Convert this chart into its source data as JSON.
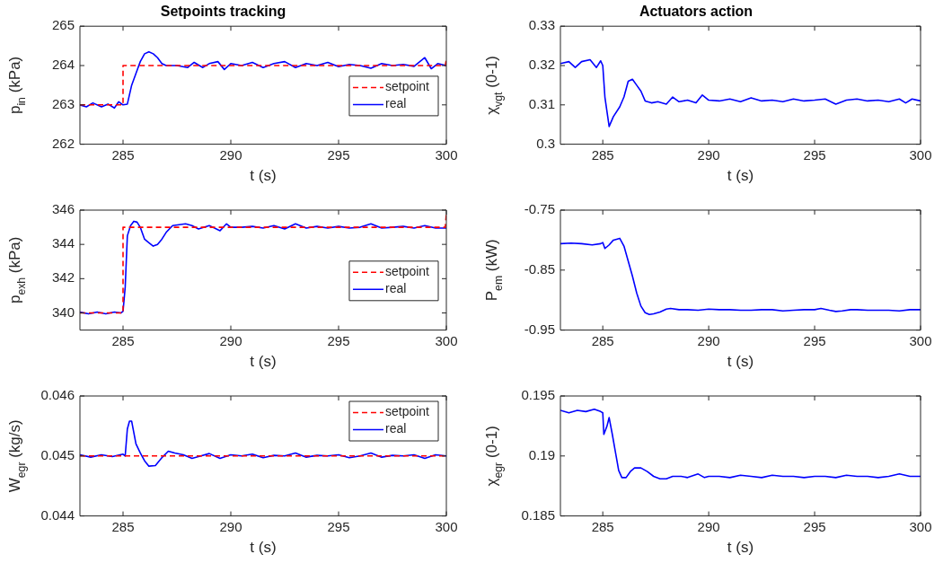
{
  "chart_data": [
    {
      "type": "line",
      "title": "Setpoints tracking",
      "xlabel": "t (s)",
      "ylabel": "p$_{in}$ (kPa)",
      "xlim": [
        283,
        300
      ],
      "xticks": [
        285,
        290,
        295,
        300
      ],
      "ylim": [
        262,
        265
      ],
      "yticks": [
        262,
        263,
        264,
        265
      ],
      "grid": false,
      "legend": "right",
      "series": [
        {
          "name": "setpoint",
          "color": "#ff0000",
          "line_style": "dashed",
          "x": [
            283,
            285,
            285,
            299.95,
            300
          ],
          "values": [
            263,
            263,
            264,
            264,
            264.15
          ]
        },
        {
          "name": "real",
          "color": "#0000ff",
          "line_style": "solid",
          "x": [
            283,
            283.3,
            283.6,
            284,
            284.3,
            284.6,
            284.8,
            285,
            285.2,
            285.4,
            285.6,
            285.8,
            286,
            286.2,
            286.4,
            286.6,
            286.8,
            287,
            287.5,
            288,
            288.3,
            288.7,
            289,
            289.4,
            289.7,
            290,
            290.5,
            291,
            291.5,
            292,
            292.5,
            293,
            293.5,
            294,
            294.5,
            295,
            295.5,
            296,
            296.5,
            297,
            297.5,
            298,
            298.5,
            299,
            299.3,
            299.6,
            300
          ],
          "values": [
            263,
            262.95,
            263.05,
            262.95,
            263.02,
            262.92,
            263.08,
            263,
            263.02,
            263.5,
            263.8,
            264.1,
            264.3,
            264.35,
            264.3,
            264.2,
            264.05,
            264,
            264,
            263.95,
            264.08,
            263.95,
            264.05,
            264.1,
            263.9,
            264.05,
            264,
            264.08,
            263.95,
            264.05,
            264.1,
            263.95,
            264.05,
            264,
            264.08,
            263.97,
            264.03,
            264,
            263.93,
            264.05,
            264,
            264.03,
            263.98,
            264.2,
            263.92,
            264.05,
            264
          ]
        }
      ]
    },
    {
      "type": "line",
      "title": "Actuators action",
      "xlabel": "t (s)",
      "ylabel": "χ$_{vgt}$ (0-1)",
      "xlim": [
        283,
        300
      ],
      "xticks": [
        285,
        290,
        295,
        300
      ],
      "ylim": [
        0.3,
        0.33
      ],
      "yticks": [
        0.3,
        0.31,
        0.32,
        0.33
      ],
      "grid": false,
      "legend": false,
      "series": [
        {
          "color": "#0000ff",
          "x": [
            283,
            283.4,
            283.7,
            284,
            284.4,
            284.7,
            284.9,
            285,
            285.1,
            285.3,
            285.5,
            285.8,
            286,
            286.2,
            286.4,
            286.6,
            286.8,
            287,
            287.3,
            287.6,
            288,
            288.3,
            288.6,
            289,
            289.4,
            289.7,
            290,
            290.5,
            291,
            291.5,
            292,
            292.5,
            293,
            293.5,
            294,
            294.5,
            295,
            295.5,
            296,
            296.5,
            297,
            297.5,
            298,
            298.5,
            299,
            299.3,
            299.6,
            300
          ],
          "values": [
            0.3205,
            0.321,
            0.3195,
            0.321,
            0.3215,
            0.3195,
            0.3212,
            0.32,
            0.312,
            0.3045,
            0.307,
            0.3095,
            0.312,
            0.316,
            0.3165,
            0.315,
            0.3135,
            0.311,
            0.3105,
            0.3108,
            0.3102,
            0.312,
            0.3108,
            0.3112,
            0.3105,
            0.3125,
            0.3112,
            0.311,
            0.3115,
            0.3108,
            0.3118,
            0.311,
            0.3112,
            0.3108,
            0.3115,
            0.311,
            0.3112,
            0.3115,
            0.3102,
            0.3112,
            0.3115,
            0.311,
            0.3112,
            0.3108,
            0.3115,
            0.3105,
            0.3115,
            0.311
          ]
        }
      ]
    },
    {
      "type": "line",
      "xlabel": "t (s)",
      "ylabel": "p$_{exh}$ (kPa)",
      "xlim": [
        283,
        300
      ],
      "xticks": [
        285,
        290,
        295,
        300
      ],
      "ylim": [
        339,
        346
      ],
      "yticks": [
        340,
        342,
        344,
        346
      ],
      "grid": false,
      "legend": "right",
      "series": [
        {
          "name": "setpoint",
          "color": "#ff0000",
          "line_style": "dashed",
          "x": [
            283,
            285,
            285,
            299.95,
            300
          ],
          "values": [
            340,
            340,
            345,
            345,
            345.8
          ]
        },
        {
          "name": "real",
          "color": "#0000ff",
          "line_style": "solid",
          "x": [
            283,
            283.4,
            283.8,
            284.2,
            284.6,
            284.9,
            285,
            285.1,
            285.2,
            285.35,
            285.5,
            285.65,
            285.8,
            286,
            286.2,
            286.4,
            286.6,
            286.8,
            287,
            287.3,
            287.6,
            287.9,
            288.2,
            288.5,
            289,
            289.5,
            289.8,
            290,
            290.5,
            291,
            291.5,
            292,
            292.5,
            293,
            293.5,
            294,
            294.5,
            295,
            295.5,
            296,
            296.5,
            297,
            297.5,
            298,
            298.5,
            299,
            299.5,
            300
          ],
          "values": [
            340.05,
            339.95,
            340.05,
            339.95,
            340.05,
            340,
            340.1,
            341.5,
            344.5,
            345.1,
            345.35,
            345.3,
            345,
            344.3,
            344.1,
            343.9,
            344.0,
            344.3,
            344.7,
            345.1,
            345.15,
            345.2,
            345.1,
            344.9,
            345.1,
            344.8,
            345.2,
            345,
            345,
            345.05,
            344.95,
            345.1,
            344.9,
            345.2,
            344.95,
            345.05,
            344.95,
            345.05,
            344.95,
            345,
            345.2,
            344.95,
            345,
            345.05,
            344.95,
            345.1,
            344.95,
            344.95
          ]
        }
      ]
    },
    {
      "type": "line",
      "xlabel": "t (s)",
      "ylabel": "P$_{em}$ (kW)",
      "xlim": [
        283,
        300
      ],
      "xticks": [
        285,
        290,
        295,
        300
      ],
      "ylim": [
        -0.95,
        -0.75
      ],
      "yticks": [
        -0.95,
        -0.85,
        -0.75
      ],
      "grid": false,
      "legend": false,
      "series": [
        {
          "color": "#0000ff",
          "x": [
            283,
            283.5,
            284,
            284.5,
            284.9,
            285,
            285.1,
            285.3,
            285.5,
            285.8,
            286,
            286.2,
            286.4,
            286.6,
            286.8,
            287,
            287.2,
            287.4,
            287.7,
            288,
            288.2,
            288.6,
            289,
            289.5,
            290,
            290.5,
            291,
            291.5,
            292,
            292.5,
            293,
            293.5,
            294,
            294.5,
            295,
            295.3,
            295.7,
            296,
            296.3,
            296.7,
            297,
            297.5,
            298,
            298.5,
            299,
            299.5,
            300
          ],
          "values": [
            -0.806,
            -0.805,
            -0.806,
            -0.808,
            -0.806,
            -0.804,
            -0.814,
            -0.808,
            -0.8,
            -0.797,
            -0.81,
            -0.835,
            -0.86,
            -0.888,
            -0.91,
            -0.921,
            -0.924,
            -0.923,
            -0.92,
            -0.915,
            -0.914,
            -0.916,
            -0.916,
            -0.917,
            -0.915,
            -0.916,
            -0.916,
            -0.917,
            -0.917,
            -0.916,
            -0.916,
            -0.918,
            -0.917,
            -0.916,
            -0.916,
            -0.914,
            -0.917,
            -0.919,
            -0.918,
            -0.916,
            -0.916,
            -0.917,
            -0.917,
            -0.917,
            -0.918,
            -0.916,
            -0.916
          ]
        }
      ]
    },
    {
      "type": "line",
      "xlabel": "t (s)",
      "ylabel": "W$_{egr}$ (kg/s)",
      "xlim": [
        283,
        300
      ],
      "xticks": [
        285,
        290,
        295,
        300
      ],
      "ylim": [
        0.044,
        0.046
      ],
      "yticks": [
        0.044,
        0.045,
        0.046
      ],
      "grid": false,
      "legend": "top right",
      "series": [
        {
          "name": "setpoint",
          "color": "#ff0000",
          "line_style": "dashed",
          "x": [
            283,
            300
          ],
          "values": [
            0.045,
            0.045
          ]
        },
        {
          "name": "real",
          "color": "#0000ff",
          "line_style": "solid",
          "x": [
            283,
            283.5,
            284,
            284.5,
            285,
            285.1,
            285.2,
            285.3,
            285.4,
            285.6,
            285.8,
            286,
            286.2,
            286.5,
            286.8,
            287.1,
            287.4,
            287.8,
            288.2,
            288.5,
            289,
            289.5,
            290,
            290.5,
            291,
            291.5,
            292,
            292.5,
            293,
            293.5,
            294,
            294.5,
            295,
            295.5,
            296,
            296.5,
            297,
            297.5,
            298,
            298.5,
            299,
            299.5,
            300
          ],
          "values": [
            0.04502,
            0.04498,
            0.04502,
            0.04499,
            0.04503,
            0.045,
            0.04545,
            0.04558,
            0.04558,
            0.0452,
            0.04505,
            0.04492,
            0.04483,
            0.04484,
            0.04497,
            0.04508,
            0.04505,
            0.04502,
            0.04496,
            0.04499,
            0.04504,
            0.04496,
            0.04502,
            0.045,
            0.04503,
            0.04497,
            0.04501,
            0.045,
            0.04505,
            0.04498,
            0.04501,
            0.045,
            0.04502,
            0.04497,
            0.045,
            0.04505,
            0.04498,
            0.04501,
            0.045,
            0.04502,
            0.04496,
            0.04502,
            0.045
          ]
        }
      ]
    },
    {
      "type": "line",
      "xlabel": "t (s)",
      "ylabel": "χ$_{egr}$ (0-1)",
      "xlim": [
        283,
        300
      ],
      "xticks": [
        285,
        290,
        295,
        300
      ],
      "ylim": [
        0.185,
        0.195
      ],
      "yticks": [
        0.185,
        0.19,
        0.195
      ],
      "grid": false,
      "legend": false,
      "series": [
        {
          "color": "#0000ff",
          "x": [
            283,
            283.4,
            283.8,
            284.2,
            284.6,
            284.9,
            285,
            285.05,
            285.2,
            285.3,
            285.45,
            285.6,
            285.75,
            285.9,
            286.1,
            286.3,
            286.5,
            286.8,
            287.1,
            287.4,
            287.7,
            288,
            288.3,
            288.7,
            289,
            289.5,
            289.8,
            290,
            290.5,
            291,
            291.5,
            292,
            292.5,
            293,
            293.5,
            294,
            294.5,
            295,
            295.5,
            296,
            296.5,
            297,
            297.5,
            298,
            298.5,
            299,
            299.5,
            300
          ],
          "values": [
            0.1938,
            0.1936,
            0.1938,
            0.1937,
            0.1939,
            0.1937,
            0.1936,
            0.1918,
            0.1925,
            0.1932,
            0.1918,
            0.1903,
            0.1888,
            0.1882,
            0.1882,
            0.1887,
            0.189,
            0.189,
            0.1887,
            0.1883,
            0.1881,
            0.1881,
            0.1883,
            0.1883,
            0.1882,
            0.1885,
            0.1882,
            0.1883,
            0.1883,
            0.1882,
            0.1884,
            0.1883,
            0.1882,
            0.1884,
            0.1883,
            0.1883,
            0.1882,
            0.1883,
            0.1883,
            0.1882,
            0.1884,
            0.1883,
            0.1883,
            0.1882,
            0.1883,
            0.1885,
            0.1883,
            0.1883
          ]
        }
      ]
    }
  ]
}
